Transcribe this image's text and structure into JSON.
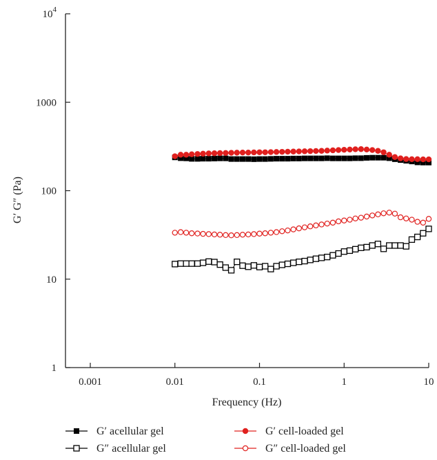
{
  "chart_data": {
    "type": "line",
    "title": "",
    "xlabel": "Frequency (Hz)",
    "ylabel": "G′ G″ (Pa)",
    "xscale": "log",
    "yscale": "log",
    "xlim": [
      0.001,
      10
    ],
    "ylim": [
      1,
      10000
    ],
    "x_ticks": [
      {
        "value": 0.001,
        "label": "0.001"
      },
      {
        "value": 0.01,
        "label": "0.01"
      },
      {
        "value": 0.1,
        "label": "0.1"
      },
      {
        "value": 1,
        "label": "1"
      },
      {
        "value": 10,
        "label": "10"
      }
    ],
    "y_ticks": [
      {
        "value": 1,
        "label": "1"
      },
      {
        "value": 10,
        "label": "10"
      },
      {
        "value": 100,
        "label": "100"
      },
      {
        "value": 1000,
        "label": "1000"
      }
    ],
    "y_top_tick": {
      "value": 10000,
      "base": "10",
      "exp": "4"
    },
    "grid": false,
    "legend_position": "bottom",
    "x": [
      0.01,
      0.0117,
      0.0136,
      0.0158,
      0.0185,
      0.0215,
      0.0251,
      0.0293,
      0.0341,
      0.0398,
      0.0464,
      0.0541,
      0.0631,
      0.0736,
      0.0858,
      0.1,
      0.1166,
      0.1359,
      0.1585,
      0.1848,
      0.2154,
      0.2512,
      0.2929,
      0.3415,
      0.3981,
      0.4642,
      0.5412,
      0.631,
      0.7356,
      0.8577,
      1.0,
      1.166,
      1.359,
      1.585,
      1.848,
      2.154,
      2.512,
      2.929,
      3.415,
      3.981,
      4.642,
      5.412,
      6.31,
      7.356,
      8.577,
      10.0
    ],
    "series": [
      {
        "name": "G′ acellular gel",
        "color": "#000000",
        "marker": "filled-square",
        "values": [
          238,
          233,
          232,
          229,
          229,
          230,
          230,
          231,
          232,
          232,
          228,
          228,
          228,
          228,
          227,
          228,
          228,
          229,
          230,
          230,
          230,
          231,
          231,
          232,
          232,
          232,
          232,
          233,
          232,
          232,
          232,
          232,
          233,
          233,
          235,
          236,
          236,
          236,
          233,
          227,
          222,
          218,
          214,
          209,
          208,
          208
        ]
      },
      {
        "name": "G″ acellular gel",
        "color": "#000000",
        "marker": "open-square",
        "values": [
          14.8,
          15.0,
          15.0,
          15.0,
          15.0,
          15.3,
          15.8,
          15.6,
          14.6,
          13.5,
          12.6,
          15.7,
          14.2,
          13.8,
          14.3,
          13.7,
          14.0,
          13.0,
          14.0,
          14.5,
          14.9,
          15.3,
          15.7,
          16.0,
          16.5,
          17.0,
          17.4,
          17.8,
          18.6,
          19.5,
          20.5,
          21.0,
          21.8,
          22.6,
          23.0,
          24.0,
          25.0,
          22.0,
          24.0,
          24.0,
          24.0,
          23.5,
          28.0,
          30.0,
          33.0,
          37.0
        ]
      },
      {
        "name": "G′ cell-loaded gel",
        "color": "#e0201e",
        "marker": "filled-circle",
        "values": [
          245,
          255,
          255,
          258,
          260,
          262,
          264,
          265,
          266,
          267,
          268,
          269,
          270,
          270,
          271,
          272,
          272,
          273,
          274,
          275,
          276,
          277,
          278,
          279,
          280,
          281,
          282,
          284,
          286,
          288,
          290,
          292,
          294,
          295,
          292,
          288,
          282,
          272,
          255,
          240,
          232,
          228,
          227,
          227,
          226,
          226
        ]
      },
      {
        "name": "G″ cell-loaded gel",
        "color": "#e0201e",
        "marker": "open-circle",
        "values": [
          33.5,
          34.0,
          33.5,
          33.0,
          32.8,
          32.5,
          32.3,
          32.0,
          31.8,
          31.5,
          31.3,
          31.5,
          31.8,
          32.0,
          32.3,
          32.7,
          33.0,
          33.5,
          34.0,
          34.8,
          35.5,
          36.5,
          37.5,
          38.5,
          39.5,
          40.5,
          41.5,
          42.5,
          43.5,
          45.0,
          46.0,
          47.0,
          48.5,
          49.5,
          51.0,
          52.5,
          54.0,
          55.5,
          56.5,
          55.0,
          50.0,
          48.5,
          47.0,
          44.5,
          43.5,
          48.0
        ]
      }
    ]
  }
}
